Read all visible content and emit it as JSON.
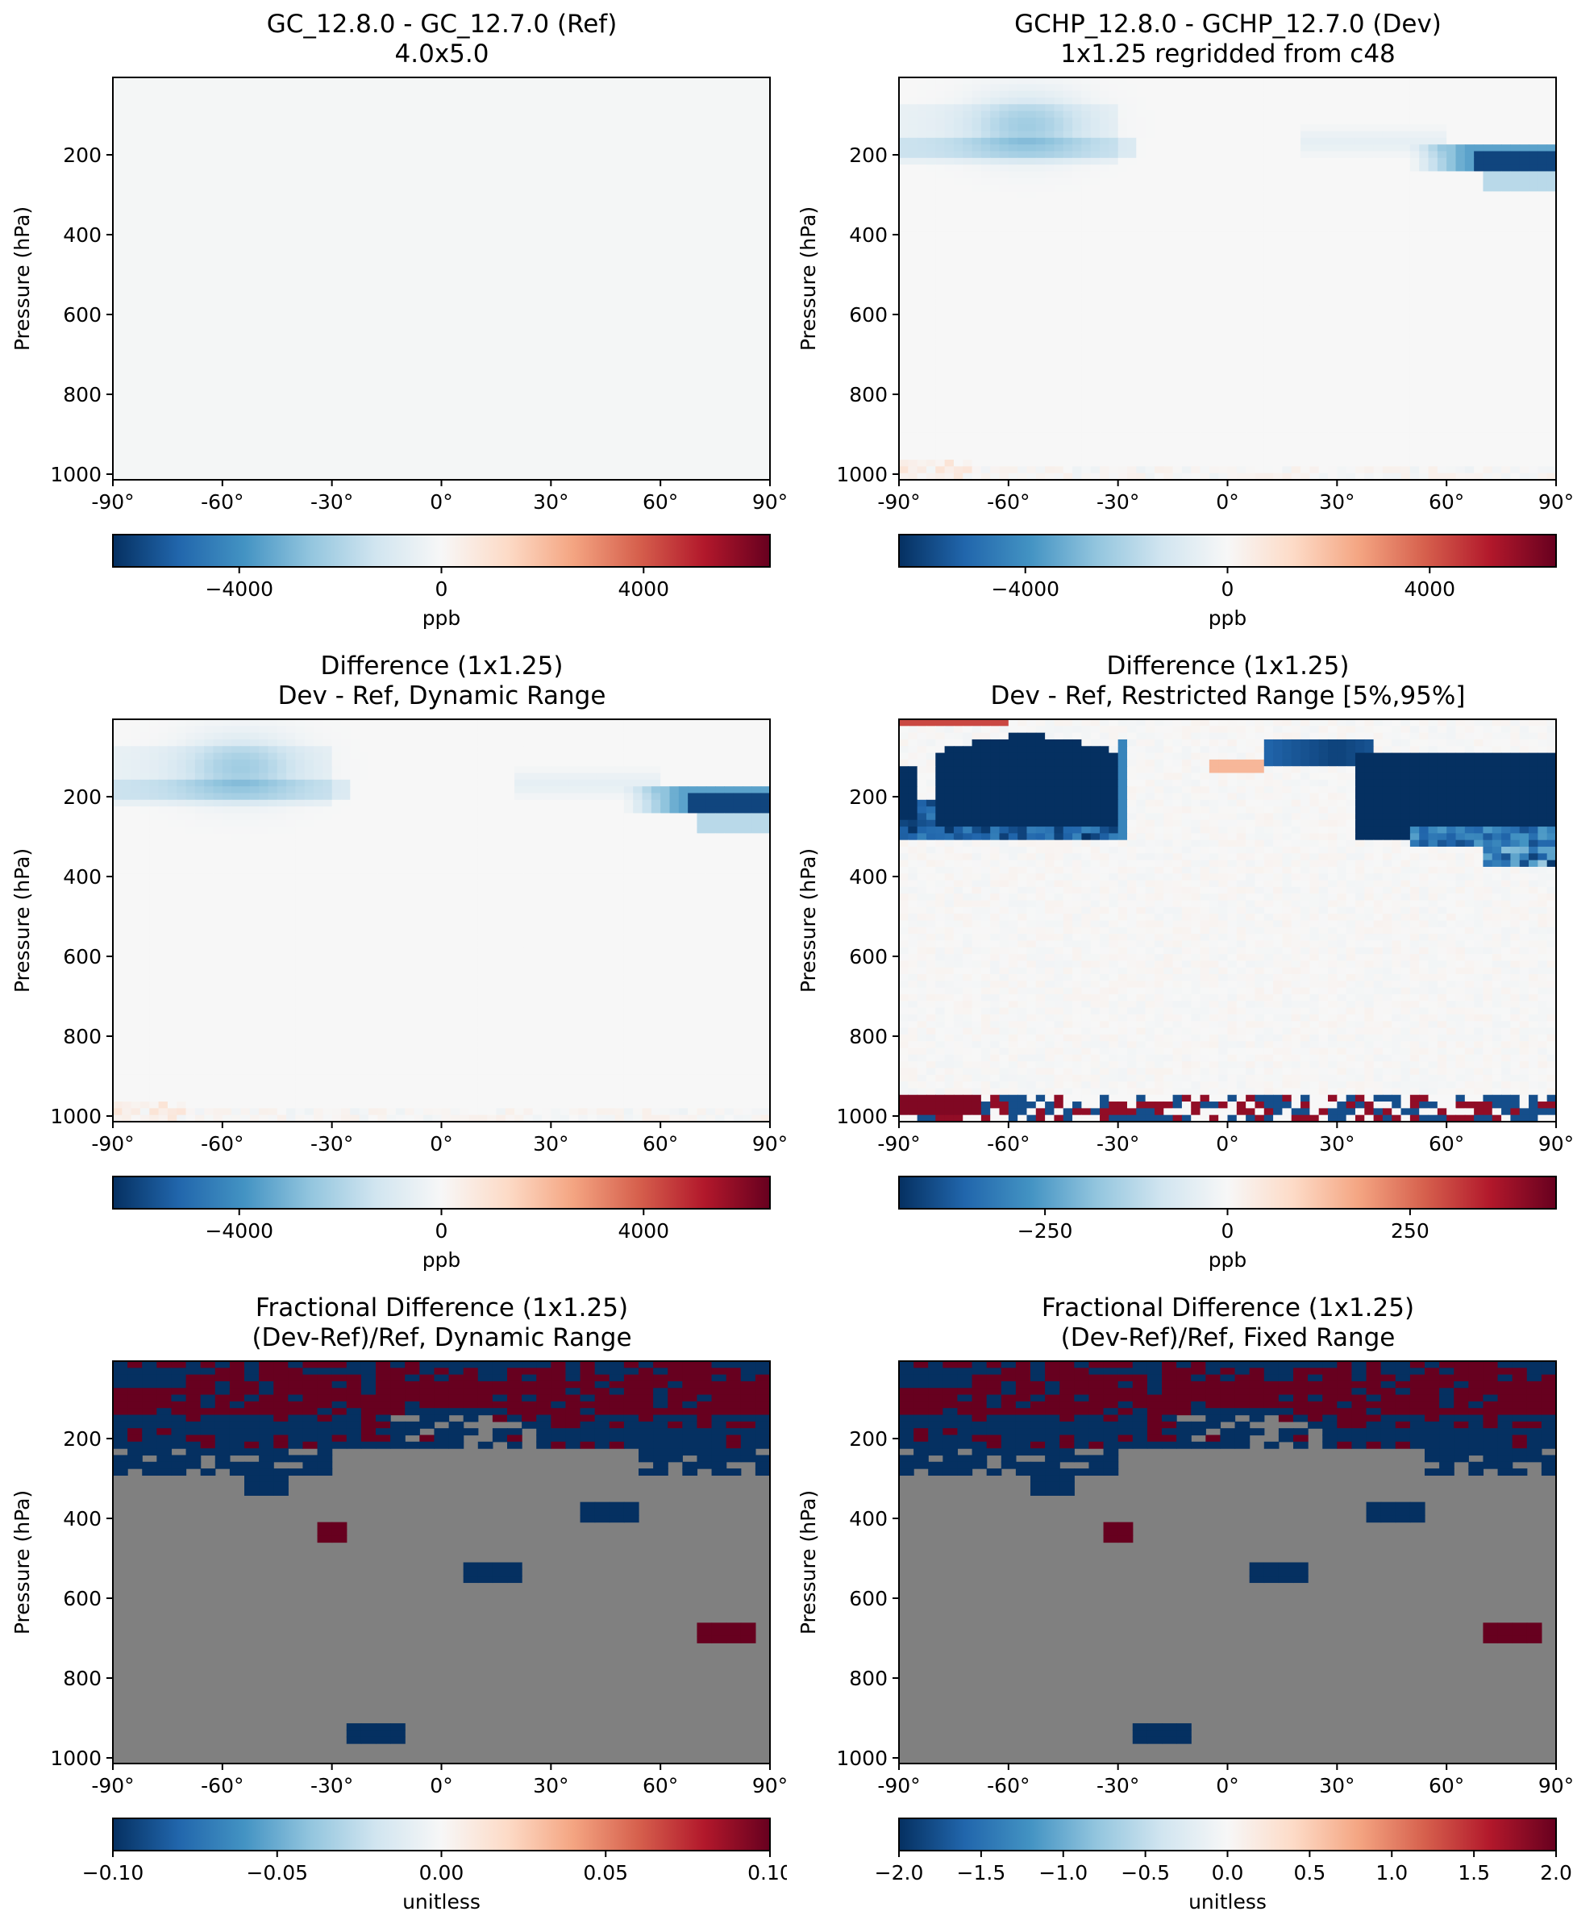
{
  "chart_data": [
    {
      "type": "heatmap",
      "title": "GC_12.8.0 - GC_12.7.0 (Ref)",
      "subtitle": "4.0x5.0",
      "ylabel": "Pressure (hPa)",
      "xticks": [
        "-90°",
        "-60°",
        "-30°",
        "0°",
        "30°",
        "60°",
        "90°"
      ],
      "yticks": [
        "200",
        "400",
        "600",
        "800",
        "1000"
      ],
      "colorbar": {
        "label": "ppb",
        "vmin": -6500,
        "vmax": 6500,
        "ticks": [
          -4000,
          0,
          4000
        ],
        "tick_labels": [
          "−4000",
          "0",
          "4000"
        ]
      },
      "field": "ref"
    },
    {
      "type": "heatmap",
      "title": "GCHP_12.8.0 - GCHP_12.7.0 (Dev)",
      "subtitle": "1x1.25 regridded from c48",
      "ylabel": "Pressure (hPa)",
      "xticks": [
        "-90°",
        "-60°",
        "-30°",
        "0°",
        "30°",
        "60°",
        "90°"
      ],
      "yticks": [
        "200",
        "400",
        "600",
        "800",
        "1000"
      ],
      "colorbar": {
        "label": "ppb",
        "vmin": -6500,
        "vmax": 6500,
        "ticks": [
          -4000,
          0,
          4000
        ],
        "tick_labels": [
          "−4000",
          "0",
          "4000"
        ]
      },
      "field": "dev"
    },
    {
      "type": "heatmap",
      "title": "Difference (1x1.25)",
      "subtitle": "Dev - Ref, Dynamic Range",
      "ylabel": "Pressure (hPa)",
      "xticks": [
        "-90°",
        "-60°",
        "-30°",
        "0°",
        "30°",
        "60°",
        "90°"
      ],
      "yticks": [
        "200",
        "400",
        "600",
        "800",
        "1000"
      ],
      "colorbar": {
        "label": "ppb",
        "vmin": -6500,
        "vmax": 6500,
        "ticks": [
          -4000,
          0,
          4000
        ],
        "tick_labels": [
          "−4000",
          "0",
          "4000"
        ]
      },
      "field": "dev"
    },
    {
      "type": "heatmap",
      "title": "Difference (1x1.25)",
      "subtitle": "Dev - Ref, Restricted Range [5%,95%]",
      "ylabel": "Pressure (hPa)",
      "xticks": [
        "-90°",
        "-60°",
        "-30°",
        "0°",
        "30°",
        "60°",
        "90°"
      ],
      "yticks": [
        "200",
        "400",
        "600",
        "800",
        "1000"
      ],
      "colorbar": {
        "label": "ppb",
        "vmin": -450,
        "vmax": 450,
        "ticks": [
          -250,
          0,
          250
        ],
        "tick_labels": [
          "−250",
          "0",
          "250"
        ]
      },
      "field": "restricted"
    },
    {
      "type": "heatmap",
      "title": "Fractional Difference (1x1.25)",
      "subtitle": "(Dev-Ref)/Ref, Dynamic Range",
      "ylabel": "Pressure (hPa)",
      "xticks": [
        "-90°",
        "-60°",
        "-30°",
        "0°",
        "30°",
        "60°",
        "90°"
      ],
      "yticks": [
        "200",
        "400",
        "600",
        "800",
        "1000"
      ],
      "colorbar": {
        "label": "unitless",
        "vmin": -0.1,
        "vmax": 0.1,
        "ticks": [
          -0.1,
          -0.05,
          0,
          0.05,
          0.1
        ],
        "tick_labels": [
          "−0.10",
          "−0.05",
          "0.00",
          "0.05",
          "0.10"
        ]
      },
      "field": "fraction"
    },
    {
      "type": "heatmap",
      "title": "Fractional Difference (1x1.25)",
      "subtitle": "(Dev-Ref)/Ref, Fixed Range",
      "ylabel": "Pressure (hPa)",
      "xticks": [
        "-90°",
        "-60°",
        "-30°",
        "0°",
        "30°",
        "60°",
        "90°"
      ],
      "yticks": [
        "200",
        "400",
        "600",
        "800",
        "1000"
      ],
      "colorbar": {
        "label": "unitless",
        "vmin": -2.0,
        "vmax": 2.0,
        "ticks": [
          -2,
          -1.5,
          -1,
          -0.5,
          0,
          0.5,
          1,
          1.5,
          2
        ],
        "tick_labels": [
          "−2.0",
          "−1.5",
          "−1.0",
          "−0.5",
          "0.0",
          "0.5",
          "1.0",
          "1.5",
          "2.0"
        ]
      },
      "field": "fraction"
    }
  ],
  "colors": {
    "colormap": [
      "#053061",
      "#2166ac",
      "#4393c3",
      "#92c5de",
      "#d1e5f0",
      "#f7f7f7",
      "#fddbc7",
      "#f4a582",
      "#d6604d",
      "#b2182b",
      "#67001f"
    ],
    "nan_gray": "#808080",
    "neutral": "#f4f6f6"
  }
}
